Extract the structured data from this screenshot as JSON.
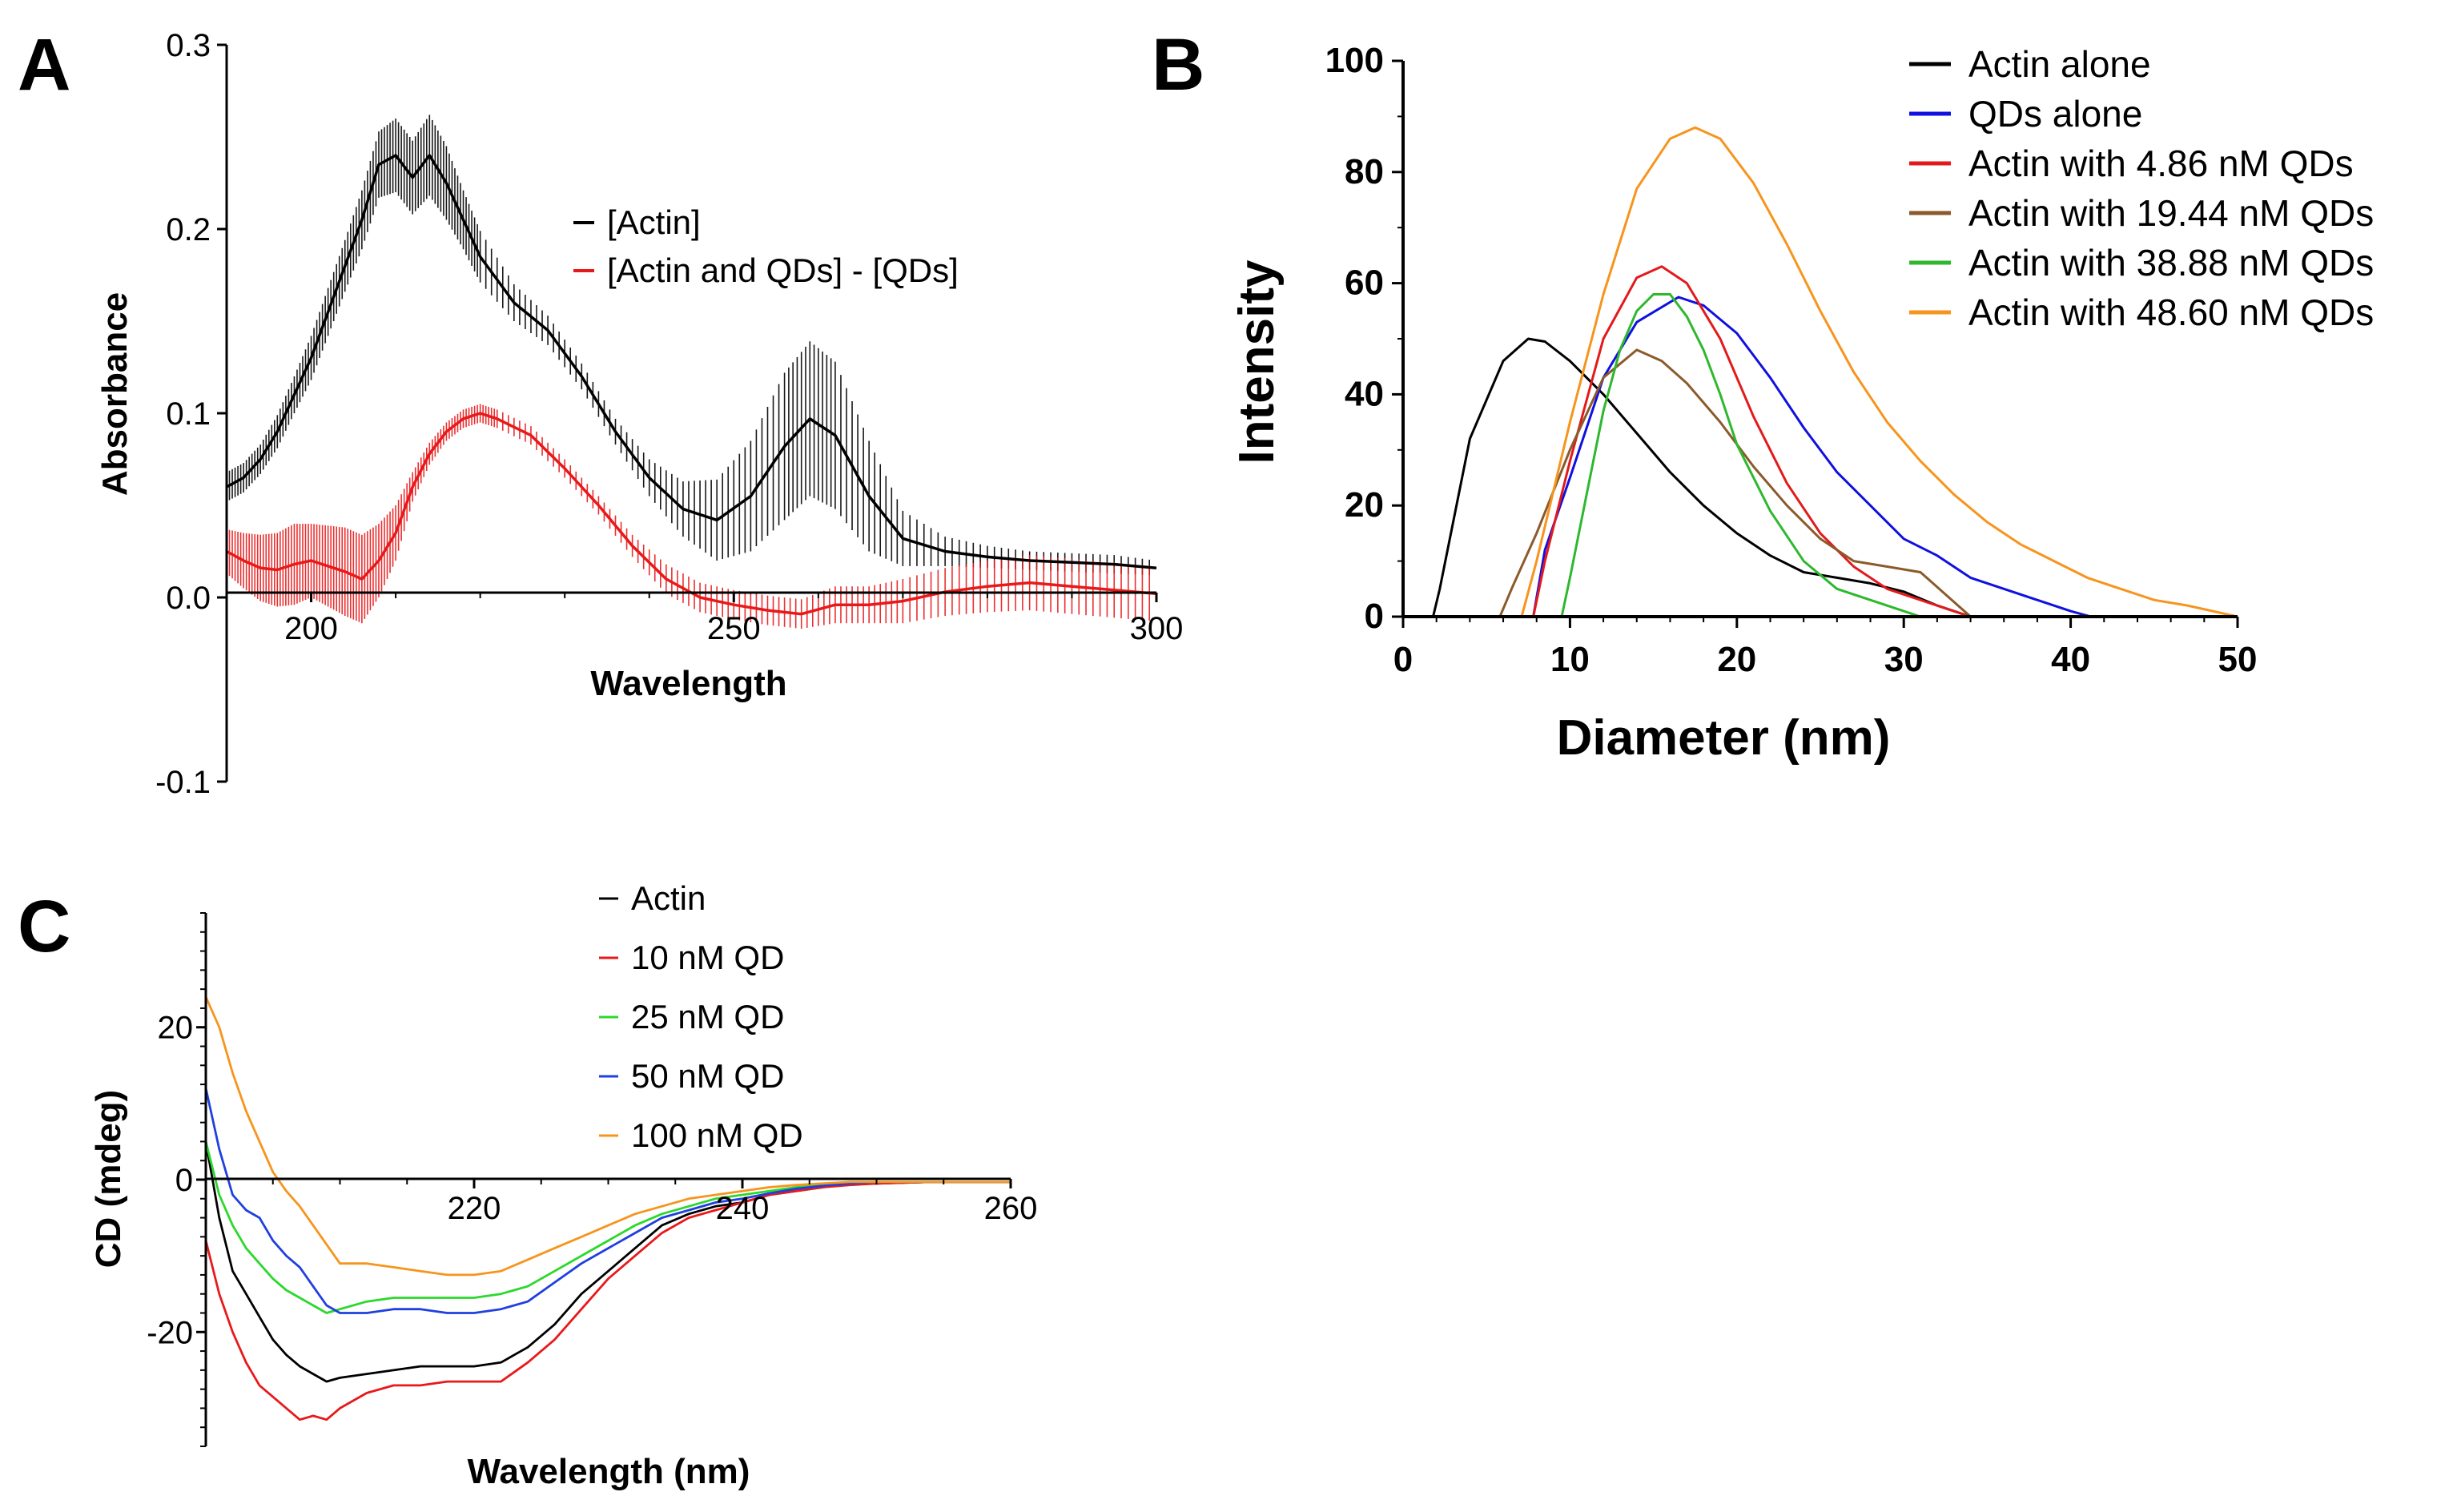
{
  "chart_data": [
    {
      "id": "A",
      "panel_label": "A",
      "type": "line",
      "title": "",
      "xlabel": "Wavelength",
      "ylabel": "Absorbance",
      "xlim": [
        190,
        300
      ],
      "ylim": [
        -0.1,
        0.3
      ],
      "xticks": [
        "200",
        "250",
        "300"
      ],
      "xtick_values": [
        200,
        250,
        300
      ],
      "yticks": [
        "-0.1",
        "0.0",
        "0.1",
        "0.2",
        "0.3"
      ],
      "ytick_values": [
        -0.1,
        0.0,
        0.1,
        0.2,
        0.3
      ],
      "legend_position": "top-right",
      "error_bars": true,
      "series": [
        {
          "name": "[Actin]",
          "color": "#000000",
          "x": [
            190,
            192,
            194,
            196,
            198,
            200,
            202,
            204,
            206,
            208,
            210,
            212,
            214,
            216,
            218,
            220,
            224,
            228,
            232,
            236,
            240,
            244,
            248,
            252,
            256,
            259,
            262,
            266,
            270,
            275,
            280,
            285,
            290,
            295,
            300
          ],
          "y": [
            0.06,
            0.065,
            0.075,
            0.09,
            0.11,
            0.13,
            0.155,
            0.18,
            0.205,
            0.235,
            0.24,
            0.228,
            0.24,
            0.225,
            0.205,
            0.185,
            0.16,
            0.145,
            0.12,
            0.09,
            0.065,
            0.048,
            0.042,
            0.055,
            0.082,
            0.097,
            0.088,
            0.055,
            0.032,
            0.025,
            0.022,
            0.02,
            0.019,
            0.018,
            0.016
          ],
          "err": [
            0.008,
            0.008,
            0.008,
            0.009,
            0.01,
            0.012,
            0.013,
            0.014,
            0.016,
            0.018,
            0.02,
            0.02,
            0.022,
            0.02,
            0.016,
            0.014,
            0.01,
            0.008,
            0.007,
            0.007,
            0.01,
            0.015,
            0.022,
            0.03,
            0.04,
            0.042,
            0.04,
            0.03,
            0.015,
            0.008,
            0.006,
            0.005,
            0.005,
            0.005,
            0.004
          ]
        },
        {
          "name": "[Actin and QDs] - [QDs]",
          "color": "#e8191b",
          "x": [
            190,
            192,
            194,
            196,
            198,
            200,
            202,
            204,
            206,
            208,
            210,
            212,
            214,
            216,
            218,
            220,
            222,
            226,
            230,
            234,
            238,
            242,
            246,
            250,
            254,
            258,
            262,
            266,
            270,
            275,
            280,
            285,
            290,
            295,
            300
          ],
          "y": [
            0.025,
            0.02,
            0.016,
            0.015,
            0.018,
            0.02,
            0.017,
            0.014,
            0.01,
            0.02,
            0.035,
            0.06,
            0.078,
            0.09,
            0.097,
            0.1,
            0.097,
            0.088,
            0.07,
            0.05,
            0.028,
            0.01,
            0.0,
            -0.004,
            -0.007,
            -0.009,
            -0.004,
            -0.004,
            -0.002,
            0.003,
            0.006,
            0.008,
            0.006,
            0.004,
            0.002
          ],
          "err": [
            0.012,
            0.015,
            0.018,
            0.02,
            0.022,
            0.02,
            0.022,
            0.024,
            0.024,
            0.02,
            0.015,
            0.008,
            0.006,
            0.005,
            0.005,
            0.005,
            0.005,
            0.005,
            0.005,
            0.005,
            0.006,
            0.008,
            0.008,
            0.008,
            0.008,
            0.008,
            0.01,
            0.01,
            0.012,
            0.013,
            0.014,
            0.015,
            0.015,
            0.015,
            0.015
          ]
        }
      ]
    },
    {
      "id": "B",
      "panel_label": "B",
      "type": "line",
      "title": "",
      "xlabel": "Diameter (nm)",
      "ylabel": "Intensity",
      "xlim": [
        0,
        50
      ],
      "ylim": [
        0,
        100
      ],
      "xticks": [
        "0",
        "10",
        "20",
        "30",
        "40",
        "50"
      ],
      "xtick_values": [
        0,
        10,
        20,
        30,
        40,
        50
      ],
      "yticks": [
        "0",
        "20",
        "40",
        "60",
        "80",
        "100"
      ],
      "ytick_values": [
        0,
        20,
        40,
        60,
        80,
        100
      ],
      "legend_position": "top-right",
      "series": [
        {
          "name": "Actin alone",
          "color": "#000000",
          "x": [
            0,
            1.8,
            2.2,
            4,
            6,
            7.5,
            8.5,
            10,
            12,
            14,
            16,
            18,
            20,
            22,
            24,
            26,
            28,
            30,
            32,
            34
          ],
          "y": [
            0,
            0,
            5,
            32,
            46,
            50,
            49.5,
            46,
            40,
            33,
            26,
            20,
            15,
            11,
            8,
            7,
            6,
            4.5,
            2,
            0
          ]
        },
        {
          "name": "QDs alone",
          "color": "#1010e0",
          "x": [
            0,
            7.8,
            8.5,
            10,
            12,
            14,
            16.5,
            18,
            20,
            22,
            24,
            26,
            28,
            30,
            32,
            34,
            36,
            38,
            40,
            41.2
          ],
          "y": [
            0,
            0,
            12,
            25,
            43,
            53,
            57.5,
            56,
            51,
            43,
            34,
            26,
            20,
            14,
            11,
            7,
            5,
            3,
            1,
            0
          ]
        },
        {
          "name": "Actin with 4.86 nM QDs",
          "color": "#e31a1c",
          "x": [
            0,
            7.8,
            8.5,
            10,
            12,
            14,
            15.5,
            17,
            19,
            21,
            23,
            25,
            27,
            29,
            31,
            33,
            34
          ],
          "y": [
            0,
            0,
            10,
            28,
            50,
            61,
            63,
            60,
            50,
            36,
            24,
            15,
            9,
            5,
            3,
            1,
            0
          ]
        },
        {
          "name": "Actin with 19.44 nM QDs",
          "color": "#8b5a2b",
          "x": [
            0,
            5.8,
            6.5,
            8,
            10,
            12,
            14,
            15.5,
            17,
            19,
            21,
            23,
            25,
            27,
            29,
            31,
            32.5,
            34
          ],
          "y": [
            0,
            0,
            5,
            15,
            30,
            43,
            48,
            46,
            42,
            35,
            27,
            20,
            14,
            10,
            9,
            8,
            4,
            0
          ]
        },
        {
          "name": "Actin with 38.88 nM QDs",
          "color": "#2eb82e",
          "x": [
            0,
            9.5,
            10,
            11,
            12,
            13,
            14,
            15,
            16,
            17,
            18,
            19,
            20,
            22,
            24,
            26,
            28,
            30,
            31
          ],
          "y": [
            0,
            0,
            7,
            22,
            37,
            48,
            55,
            58,
            58,
            54,
            48,
            40,
            31,
            19,
            10,
            5,
            3,
            1,
            0
          ]
        },
        {
          "name": "Actin with 48.60 nM QDs",
          "color": "#f7941d",
          "x": [
            0,
            7.1,
            8,
            10,
            12,
            14,
            16,
            17.5,
            19,
            21,
            23,
            25,
            27,
            29,
            31,
            33,
            35,
            37,
            39,
            41,
            43,
            45,
            47,
            50
          ],
          "y": [
            0,
            0,
            10,
            35,
            58,
            77,
            86,
            88,
            86,
            78,
            67,
            55,
            44,
            35,
            28,
            22,
            17,
            13,
            10,
            7,
            5,
            3,
            2,
            0
          ]
        }
      ]
    },
    {
      "id": "C",
      "panel_label": "C",
      "type": "line",
      "title": "",
      "xlabel": "Wavelength (nm)",
      "ylabel": "CD (mdeg)",
      "xlim": [
        200,
        260
      ],
      "ylim": [
        -35,
        35
      ],
      "xticks": [
        "220",
        "240",
        "260"
      ],
      "xtick_values": [
        220,
        240,
        260
      ],
      "yticks": [
        "20",
        "0",
        "-20"
      ],
      "ytick_values": [
        20,
        0,
        -20
      ],
      "legend_position": "top-center",
      "series": [
        {
          "name": "Actin",
          "color": "#000000",
          "x": [
            200,
            201,
            202,
            203,
            204,
            205,
            206,
            207,
            208,
            209,
            210,
            212,
            214,
            216,
            218,
            220,
            222,
            224,
            226,
            228,
            230,
            232,
            234,
            236,
            238,
            240,
            242,
            244,
            246,
            248,
            250,
            254,
            258,
            260
          ],
          "y": [
            5,
            -5,
            -12,
            -15,
            -18,
            -21,
            -23,
            -24.5,
            -25.5,
            -26.5,
            -26,
            -25.5,
            -25,
            -24.5,
            -24.5,
            -24.5,
            -24,
            -22,
            -19,
            -15,
            -12,
            -9,
            -6,
            -4.5,
            -3.5,
            -3,
            -2,
            -1.5,
            -1,
            -0.5,
            -0.5,
            -0.3,
            -0.3,
            -0.3
          ]
        },
        {
          "name": "10 nM QD",
          "color": "#e8191b",
          "x": [
            200,
            201,
            202,
            203,
            204,
            205,
            206,
            207,
            208,
            209,
            210,
            212,
            214,
            216,
            218,
            220,
            222,
            224,
            226,
            228,
            230,
            232,
            234,
            236,
            238,
            240,
            242,
            244,
            246,
            248,
            250,
            254,
            258,
            260
          ],
          "y": [
            -8,
            -15,
            -20,
            -24,
            -27,
            -28.5,
            -30,
            -31.5,
            -31,
            -31.5,
            -30,
            -28,
            -27,
            -27,
            -26.5,
            -26.5,
            -26.5,
            -24,
            -21,
            -17,
            -13,
            -10,
            -7,
            -5,
            -4,
            -3,
            -2,
            -1.5,
            -1,
            -0.7,
            -0.5,
            -0.3,
            -0.3,
            -0.3
          ]
        },
        {
          "name": "25 nM QD",
          "color": "#2bd82b",
          "x": [
            200,
            201,
            202,
            203,
            204,
            205,
            206,
            207,
            208,
            209,
            210,
            212,
            214,
            216,
            218,
            220,
            222,
            224,
            226,
            228,
            230,
            232,
            234,
            236,
            238,
            240,
            242,
            244,
            246,
            248,
            250,
            254,
            258,
            260
          ],
          "y": [
            5,
            -2,
            -6,
            -9,
            -11,
            -13,
            -14.5,
            -15.5,
            -16.5,
            -17.5,
            -17,
            -16,
            -15.5,
            -15.5,
            -15.5,
            -15.5,
            -15,
            -14,
            -12,
            -10,
            -8,
            -6,
            -4.5,
            -3.5,
            -2.5,
            -2,
            -1.5,
            -1,
            -0.7,
            -0.5,
            -0.3,
            -0.3,
            -0.3,
            -0.3
          ]
        },
        {
          "name": "50 nM QD",
          "color": "#1f3fe0",
          "x": [
            200,
            201,
            202,
            203,
            204,
            205,
            206,
            207,
            208,
            209,
            210,
            212,
            214,
            216,
            218,
            220,
            222,
            224,
            226,
            228,
            230,
            232,
            234,
            236,
            238,
            240,
            242,
            244,
            246,
            248,
            250,
            254,
            258,
            260
          ],
          "y": [
            12,
            4,
            -2,
            -4,
            -5,
            -8,
            -10,
            -11.5,
            -14,
            -16.5,
            -17.5,
            -17.5,
            -17,
            -17,
            -17.5,
            -17.5,
            -17,
            -16,
            -13.5,
            -11,
            -9,
            -7,
            -5,
            -4,
            -3,
            -2.5,
            -1.8,
            -1.2,
            -0.8,
            -0.5,
            -0.3,
            -0.3,
            -0.3,
            -0.3
          ]
        },
        {
          "name": "100 nM QD",
          "color": "#f7941d",
          "x": [
            200,
            201,
            202,
            203,
            204,
            205,
            206,
            207,
            208,
            209,
            210,
            212,
            214,
            216,
            218,
            220,
            222,
            224,
            226,
            228,
            230,
            232,
            234,
            236,
            238,
            240,
            242,
            244,
            246,
            248,
            250,
            254,
            258,
            260
          ],
          "y": [
            24,
            20,
            14,
            9,
            5,
            1,
            -1.5,
            -3.5,
            -6,
            -8.5,
            -11,
            -11,
            -11.5,
            -12,
            -12.5,
            -12.5,
            -12,
            -10.5,
            -9,
            -7.5,
            -6,
            -4.5,
            -3.5,
            -2.5,
            -2,
            -1.5,
            -1,
            -0.7,
            -0.5,
            -0.3,
            -0.3,
            -0.3,
            -0.3,
            -0.3
          ]
        }
      ]
    }
  ]
}
